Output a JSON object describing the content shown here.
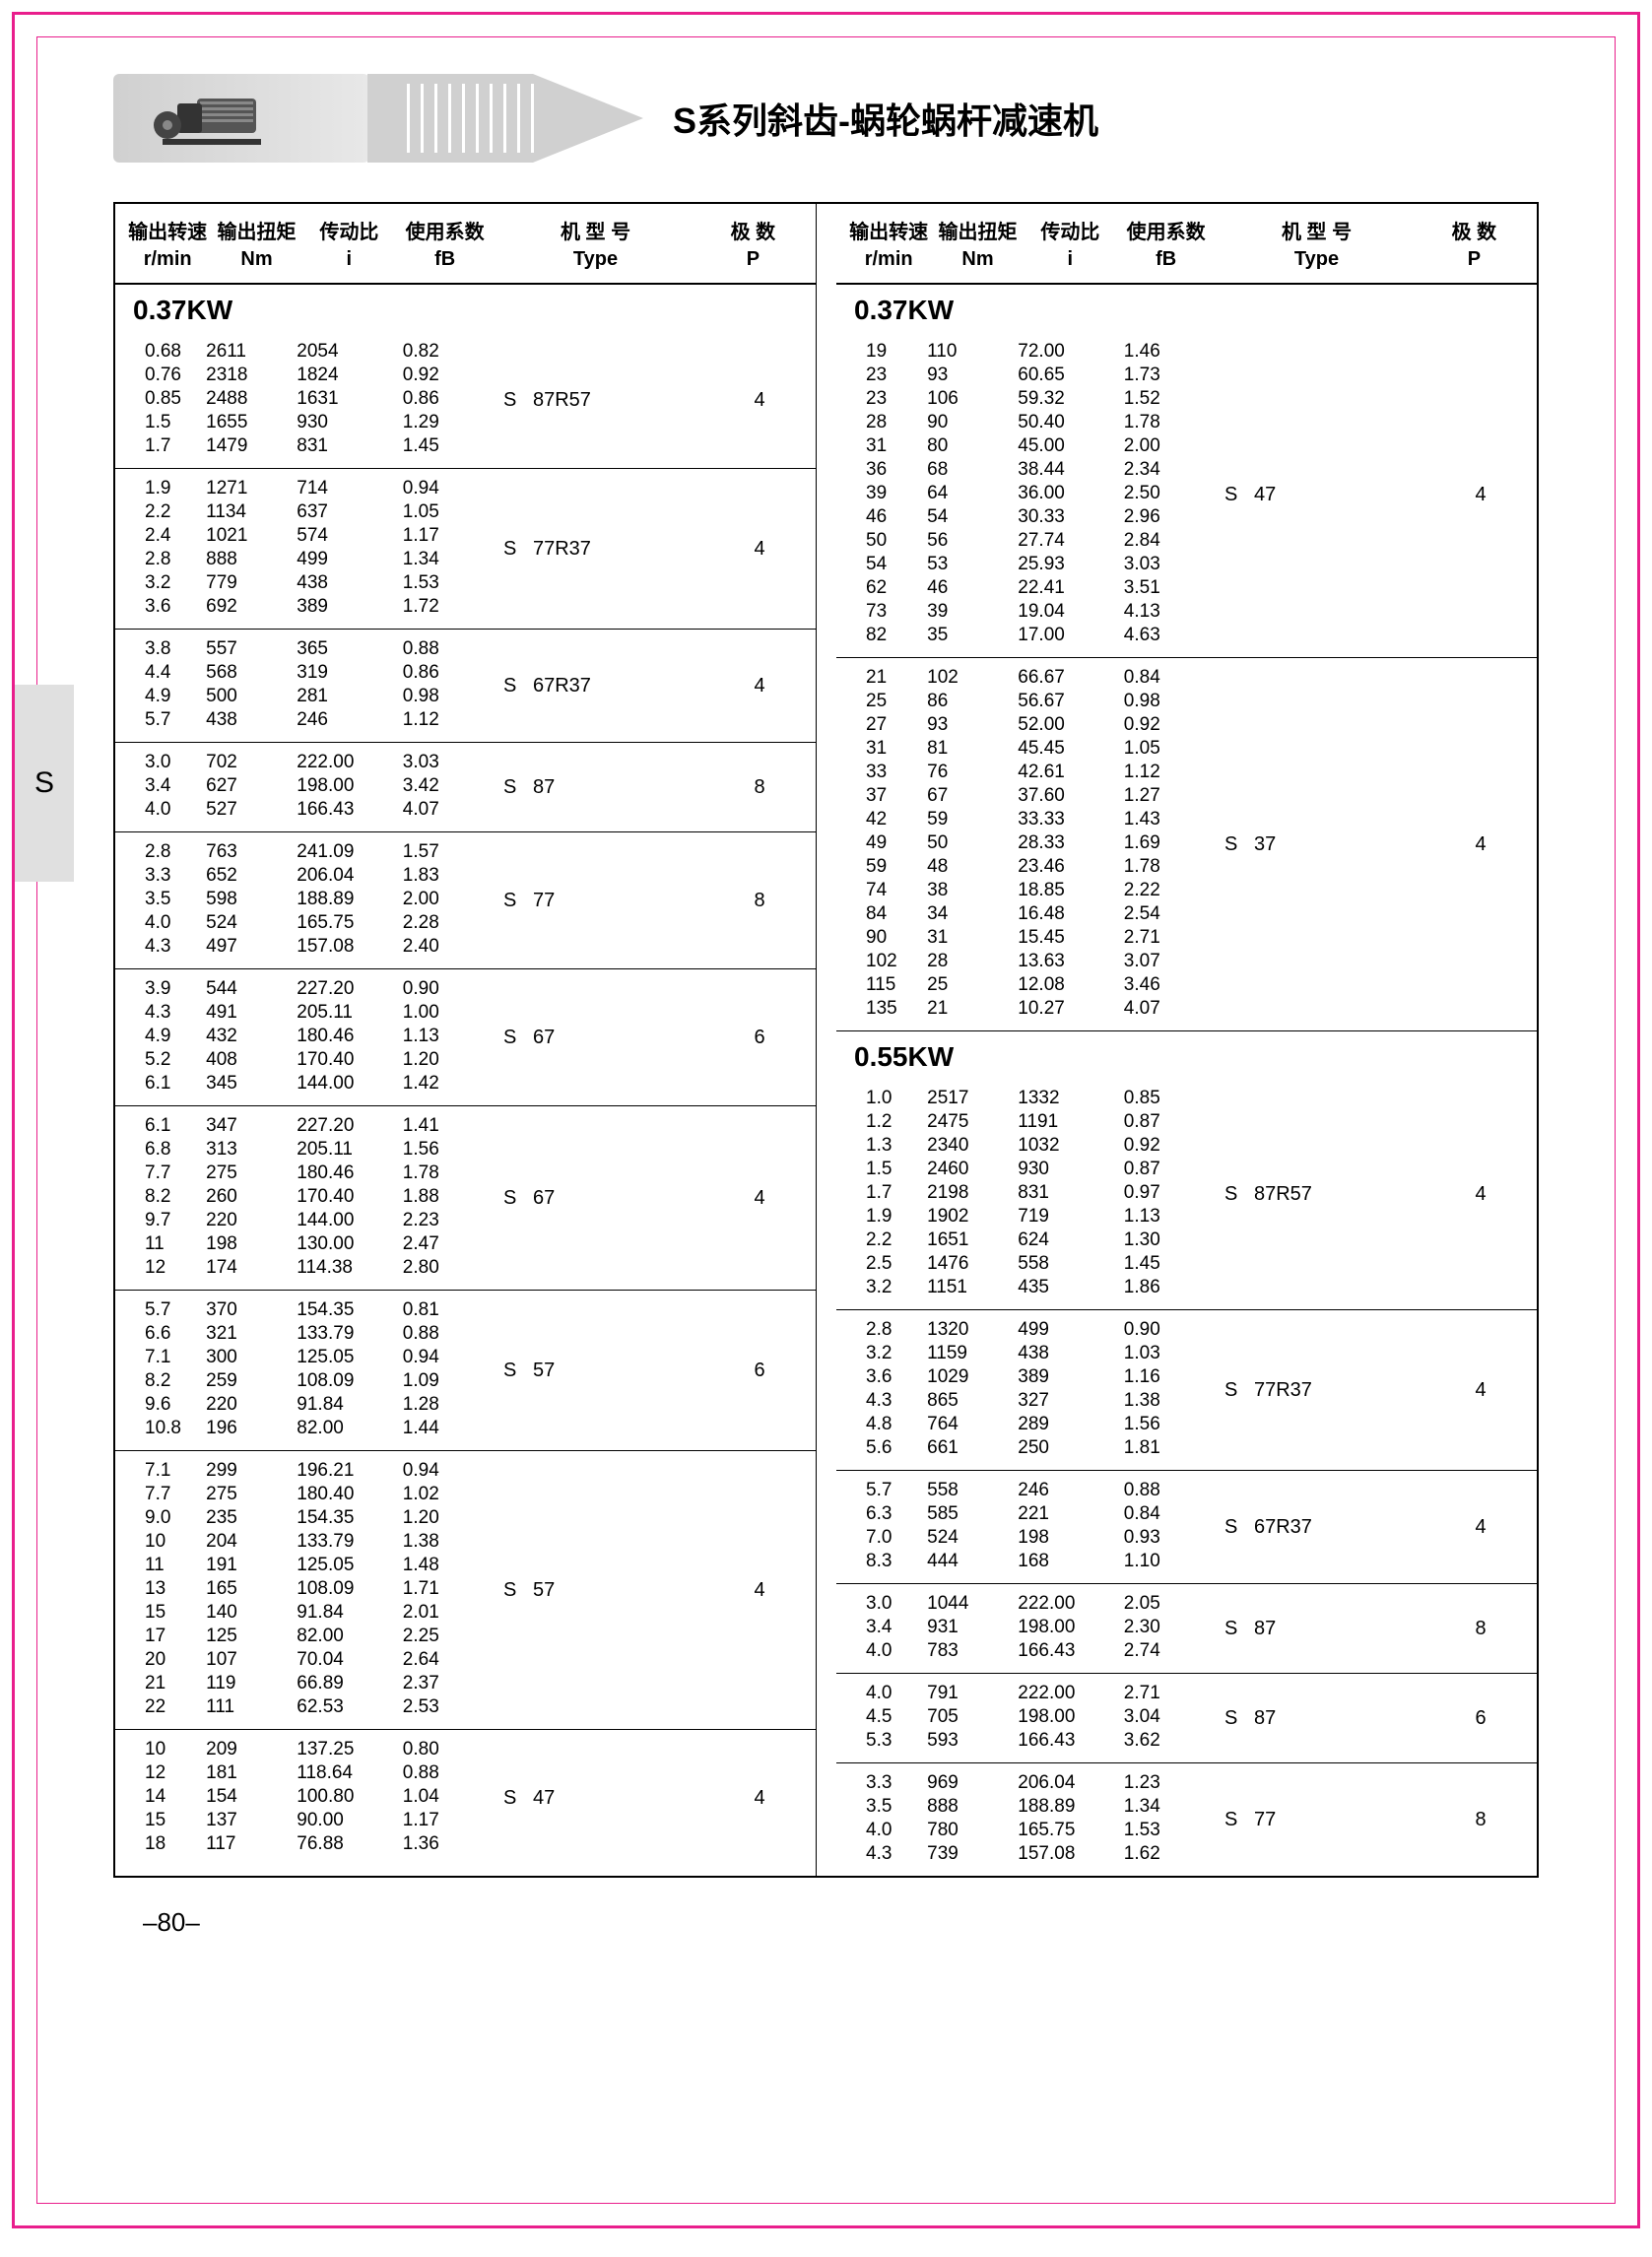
{
  "page_title": "S系列斜齿-蜗轮蜗杆减速机",
  "side_tab": "S",
  "page_number": "–80–",
  "headers": {
    "c1_l1": "输出转速",
    "c1_l2": "r/min",
    "c2_l1": "输出扭矩",
    "c2_l2": "Nm",
    "c3_l1": "传动比",
    "c3_l2": "i",
    "c4_l1": "使用系数",
    "c4_l2": "fB",
    "c5_l1": "机 型 号",
    "c5_l2": "Type",
    "c6_l1": "极 数",
    "c6_l2": "P"
  },
  "left": [
    {
      "power": "0.37KW",
      "type": "S   87R57",
      "p": "4",
      "rows": [
        [
          "0.68",
          "2611",
          "2054",
          "0.82"
        ],
        [
          "0.76",
          "2318",
          "1824",
          "0.92"
        ],
        [
          "0.85",
          "2488",
          "1631",
          "0.86"
        ],
        [
          "1.5",
          "1655",
          "930",
          "1.29"
        ],
        [
          "1.7",
          "1479",
          "831",
          "1.45"
        ]
      ]
    },
    {
      "type": "S   77R37",
      "p": "4",
      "rows": [
        [
          "1.9",
          "1271",
          "714",
          "0.94"
        ],
        [
          "2.2",
          "1134",
          "637",
          "1.05"
        ],
        [
          "2.4",
          "1021",
          "574",
          "1.17"
        ],
        [
          "2.8",
          "888",
          "499",
          "1.34"
        ],
        [
          "3.2",
          "779",
          "438",
          "1.53"
        ],
        [
          "3.6",
          "692",
          "389",
          "1.72"
        ]
      ]
    },
    {
      "type": "S   67R37",
      "p": "4",
      "rows": [
        [
          "3.8",
          "557",
          "365",
          "0.88"
        ],
        [
          "4.4",
          "568",
          "319",
          "0.86"
        ],
        [
          "4.9",
          "500",
          "281",
          "0.98"
        ],
        [
          "5.7",
          "438",
          "246",
          "1.12"
        ]
      ]
    },
    {
      "type": "S   87",
      "p": "8",
      "rows": [
        [
          "3.0",
          "702",
          "222.00",
          "3.03"
        ],
        [
          "3.4",
          "627",
          "198.00",
          "3.42"
        ],
        [
          "4.0",
          "527",
          "166.43",
          "4.07"
        ]
      ]
    },
    {
      "type": "S   77",
      "p": "8",
      "rows": [
        [
          "2.8",
          "763",
          "241.09",
          "1.57"
        ],
        [
          "3.3",
          "652",
          "206.04",
          "1.83"
        ],
        [
          "3.5",
          "598",
          "188.89",
          "2.00"
        ],
        [
          "4.0",
          "524",
          "165.75",
          "2.28"
        ],
        [
          "4.3",
          "497",
          "157.08",
          "2.40"
        ]
      ]
    },
    {
      "type": "S   67",
      "p": "6",
      "rows": [
        [
          "3.9",
          "544",
          "227.20",
          "0.90"
        ],
        [
          "4.3",
          "491",
          "205.11",
          "1.00"
        ],
        [
          "4.9",
          "432",
          "180.46",
          "1.13"
        ],
        [
          "5.2",
          "408",
          "170.40",
          "1.20"
        ],
        [
          "6.1",
          "345",
          "144.00",
          "1.42"
        ]
      ]
    },
    {
      "type": "S   67",
      "p": "4",
      "rows": [
        [
          "6.1",
          "347",
          "227.20",
          "1.41"
        ],
        [
          "6.8",
          "313",
          "205.11",
          "1.56"
        ],
        [
          "7.7",
          "275",
          "180.46",
          "1.78"
        ],
        [
          "8.2",
          "260",
          "170.40",
          "1.88"
        ],
        [
          "9.7",
          "220",
          "144.00",
          "2.23"
        ],
        [
          "11",
          "198",
          "130.00",
          "2.47"
        ],
        [
          "12",
          "174",
          "114.38",
          "2.80"
        ]
      ]
    },
    {
      "type": "S   57",
      "p": "6",
      "rows": [
        [
          "5.7",
          "370",
          "154.35",
          "0.81"
        ],
        [
          "6.6",
          "321",
          "133.79",
          "0.88"
        ],
        [
          "7.1",
          "300",
          "125.05",
          "0.94"
        ],
        [
          "8.2",
          "259",
          "108.09",
          "1.09"
        ],
        [
          "9.6",
          "220",
          "91.84",
          "1.28"
        ],
        [
          "10.8",
          "196",
          "82.00",
          "1.44"
        ]
      ]
    },
    {
      "type": "S   57",
      "p": "4",
      "rows": [
        [
          "7.1",
          "299",
          "196.21",
          "0.94"
        ],
        [
          "7.7",
          "275",
          "180.40",
          "1.02"
        ],
        [
          "9.0",
          "235",
          "154.35",
          "1.20"
        ],
        [
          "10",
          "204",
          "133.79",
          "1.38"
        ],
        [
          "11",
          "191",
          "125.05",
          "1.48"
        ],
        [
          "13",
          "165",
          "108.09",
          "1.71"
        ],
        [
          "15",
          "140",
          "91.84",
          "2.01"
        ],
        [
          "17",
          "125",
          "82.00",
          "2.25"
        ],
        [
          "20",
          "107",
          "70.04",
          "2.64"
        ],
        [
          "21",
          "119",
          "66.89",
          "2.37"
        ],
        [
          "22",
          "111",
          "62.53",
          "2.53"
        ]
      ]
    },
    {
      "type": "S   47",
      "p": "4",
      "rows": [
        [
          "10",
          "209",
          "137.25",
          "0.80"
        ],
        [
          "12",
          "181",
          "118.64",
          "0.88"
        ],
        [
          "14",
          "154",
          "100.80",
          "1.04"
        ],
        [
          "15",
          "137",
          "90.00",
          "1.17"
        ],
        [
          "18",
          "117",
          "76.88",
          "1.36"
        ]
      ]
    }
  ],
  "right": [
    {
      "power": "0.37KW",
      "type": "S   47",
      "p": "4",
      "rows": [
        [
          "19",
          "110",
          "72.00",
          "1.46"
        ],
        [
          "23",
          "93",
          "60.65",
          "1.73"
        ],
        [
          "23",
          "106",
          "59.32",
          "1.52"
        ],
        [
          "28",
          "90",
          "50.40",
          "1.78"
        ],
        [
          "31",
          "80",
          "45.00",
          "2.00"
        ],
        [
          "36",
          "68",
          "38.44",
          "2.34"
        ],
        [
          "39",
          "64",
          "36.00",
          "2.50"
        ],
        [
          "46",
          "54",
          "30.33",
          "2.96"
        ],
        [
          "50",
          "56",
          "27.74",
          "2.84"
        ],
        [
          "54",
          "53",
          "25.93",
          "3.03"
        ],
        [
          "62",
          "46",
          "22.41",
          "3.51"
        ],
        [
          "73",
          "39",
          "19.04",
          "4.13"
        ],
        [
          "82",
          "35",
          "17.00",
          "4.63"
        ]
      ]
    },
    {
      "type": "S   37",
      "p": "4",
      "rows": [
        [
          "21",
          "102",
          "66.67",
          "0.84"
        ],
        [
          "25",
          "86",
          "56.67",
          "0.98"
        ],
        [
          "27",
          "93",
          "52.00",
          "0.92"
        ],
        [
          "31",
          "81",
          "45.45",
          "1.05"
        ],
        [
          "33",
          "76",
          "42.61",
          "1.12"
        ],
        [
          "37",
          "67",
          "37.60",
          "1.27"
        ],
        [
          "42",
          "59",
          "33.33",
          "1.43"
        ],
        [
          "49",
          "50",
          "28.33",
          "1.69"
        ],
        [
          "59",
          "48",
          "23.46",
          "1.78"
        ],
        [
          "74",
          "38",
          "18.85",
          "2.22"
        ],
        [
          "84",
          "34",
          "16.48",
          "2.54"
        ],
        [
          "90",
          "31",
          "15.45",
          "2.71"
        ],
        [
          "102",
          "28",
          "13.63",
          "3.07"
        ],
        [
          "115",
          "25",
          "12.08",
          "3.46"
        ],
        [
          "135",
          "21",
          "10.27",
          "4.07"
        ]
      ]
    },
    {
      "power": "0.55KW",
      "type": "S   87R57",
      "p": "4",
      "rows": [
        [
          "1.0",
          "2517",
          "1332",
          "0.85"
        ],
        [
          "1.2",
          "2475",
          "1191",
          "0.87"
        ],
        [
          "1.3",
          "2340",
          "1032",
          "0.92"
        ],
        [
          "1.5",
          "2460",
          "930",
          "0.87"
        ],
        [
          "1.7",
          "2198",
          "831",
          "0.97"
        ],
        [
          "1.9",
          "1902",
          "719",
          "1.13"
        ],
        [
          "2.2",
          "1651",
          "624",
          "1.30"
        ],
        [
          "2.5",
          "1476",
          "558",
          "1.45"
        ],
        [
          "3.2",
          "1151",
          "435",
          "1.86"
        ]
      ]
    },
    {
      "type": "S   77R37",
      "p": "4",
      "rows": [
        [
          "2.8",
          "1320",
          "499",
          "0.90"
        ],
        [
          "3.2",
          "1159",
          "438",
          "1.03"
        ],
        [
          "3.6",
          "1029",
          "389",
          "1.16"
        ],
        [
          "4.3",
          "865",
          "327",
          "1.38"
        ],
        [
          "4.8",
          "764",
          "289",
          "1.56"
        ],
        [
          "5.6",
          "661",
          "250",
          "1.81"
        ]
      ]
    },
    {
      "type": "S   67R37",
      "p": "4",
      "rows": [
        [
          "5.7",
          "558",
          "246",
          "0.88"
        ],
        [
          "6.3",
          "585",
          "221",
          "0.84"
        ],
        [
          "7.0",
          "524",
          "198",
          "0.93"
        ],
        [
          "8.3",
          "444",
          "168",
          "1.10"
        ]
      ]
    },
    {
      "type": "S   87",
      "p": "8",
      "rows": [
        [
          "3.0",
          "1044",
          "222.00",
          "2.05"
        ],
        [
          "3.4",
          "931",
          "198.00",
          "2.30"
        ],
        [
          "4.0",
          "783",
          "166.43",
          "2.74"
        ]
      ]
    },
    {
      "type": "S   87",
      "p": "6",
      "rows": [
        [
          "4.0",
          "791",
          "222.00",
          "2.71"
        ],
        [
          "4.5",
          "705",
          "198.00",
          "3.04"
        ],
        [
          "5.3",
          "593",
          "166.43",
          "3.62"
        ]
      ]
    },
    {
      "type": "S   77",
      "p": "8",
      "rows": [
        [
          "3.3",
          "969",
          "206.04",
          "1.23"
        ],
        [
          "3.5",
          "888",
          "188.89",
          "1.34"
        ],
        [
          "4.0",
          "780",
          "165.75",
          "1.53"
        ],
        [
          "4.3",
          "739",
          "157.08",
          "1.62"
        ]
      ]
    }
  ]
}
